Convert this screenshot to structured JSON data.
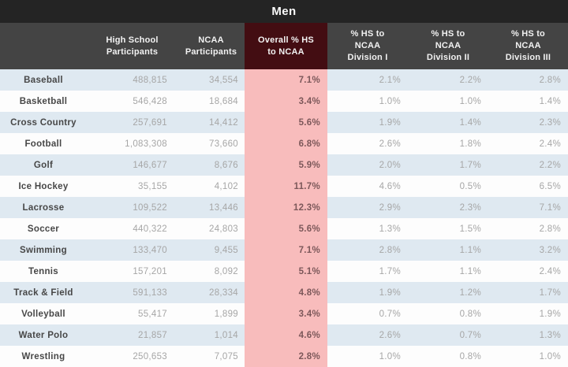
{
  "title": "Men",
  "colors": {
    "title_bar_bg": "#242424",
    "header_bg": "#444444",
    "header_text": "#f2f2f2",
    "overall_header_bg": "#430d12",
    "overall_column_bg": "#f8bcbc",
    "overall_value_text": "#7c585a",
    "stripe_row_bg": "#dfe9f1",
    "plain_row_bg": "#fdfdfd",
    "sport_text": "#474747",
    "value_text": "#a6a6a6"
  },
  "columns": {
    "sport": "",
    "hs": "High School\nParticipants",
    "ncaa": "NCAA\nParticipants",
    "overall": "Overall % HS\nto NCAA",
    "d1": "% HS to\nNCAA\nDivision I",
    "d2": "% HS to\nNCAA\nDivision II",
    "d3": "% HS to\nNCAA\nDivision III"
  },
  "rows": [
    {
      "sport": "Baseball",
      "hs": "488,815",
      "ncaa": "34,554",
      "overall": "7.1%",
      "d1": "2.1%",
      "d2": "2.2%",
      "d3": "2.8%"
    },
    {
      "sport": "Basketball",
      "hs": "546,428",
      "ncaa": "18,684",
      "overall": "3.4%",
      "d1": "1.0%",
      "d2": "1.0%",
      "d3": "1.4%"
    },
    {
      "sport": "Cross Country",
      "hs": "257,691",
      "ncaa": "14,412",
      "overall": "5.6%",
      "d1": "1.9%",
      "d2": "1.4%",
      "d3": "2.3%"
    },
    {
      "sport": "Football",
      "hs": "1,083,308",
      "ncaa": "73,660",
      "overall": "6.8%",
      "d1": "2.6%",
      "d2": "1.8%",
      "d3": "2.4%"
    },
    {
      "sport": "Golf",
      "hs": "146,677",
      "ncaa": "8,676",
      "overall": "5.9%",
      "d1": "2.0%",
      "d2": "1.7%",
      "d3": "2.2%"
    },
    {
      "sport": "Ice Hockey",
      "hs": "35,155",
      "ncaa": "4,102",
      "overall": "11.7%",
      "d1": "4.6%",
      "d2": "0.5%",
      "d3": "6.5%"
    },
    {
      "sport": "Lacrosse",
      "hs": "109,522",
      "ncaa": "13,446",
      "overall": "12.3%",
      "d1": "2.9%",
      "d2": "2.3%",
      "d3": "7.1%"
    },
    {
      "sport": "Soccer",
      "hs": "440,322",
      "ncaa": "24,803",
      "overall": "5.6%",
      "d1": "1.3%",
      "d2": "1.5%",
      "d3": "2.8%"
    },
    {
      "sport": "Swimming",
      "hs": "133,470",
      "ncaa": "9,455",
      "overall": "7.1%",
      "d1": "2.8%",
      "d2": "1.1%",
      "d3": "3.2%"
    },
    {
      "sport": "Tennis",
      "hs": "157,201",
      "ncaa": "8,092",
      "overall": "5.1%",
      "d1": "1.7%",
      "d2": "1.1%",
      "d3": "2.4%"
    },
    {
      "sport": "Track & Field",
      "hs": "591,133",
      "ncaa": "28,334",
      "overall": "4.8%",
      "d1": "1.9%",
      "d2": "1.2%",
      "d3": "1.7%"
    },
    {
      "sport": "Volleyball",
      "hs": "55,417",
      "ncaa": "1,899",
      "overall": "3.4%",
      "d1": "0.7%",
      "d2": "0.8%",
      "d3": "1.9%"
    },
    {
      "sport": "Water Polo",
      "hs": "21,857",
      "ncaa": "1,014",
      "overall": "4.6%",
      "d1": "2.6%",
      "d2": "0.7%",
      "d3": "1.3%"
    },
    {
      "sport": "Wrestling",
      "hs": "250,653",
      "ncaa": "7,075",
      "overall": "2.8%",
      "d1": "1.0%",
      "d2": "0.8%",
      "d3": "1.0%"
    }
  ],
  "chart_data": {
    "type": "table",
    "title": "Men",
    "columns": [
      "",
      "High School Participants",
      "NCAA Participants",
      "Overall % HS to NCAA",
      "% HS to NCAA Division I",
      "% HS to NCAA Division II",
      "% HS to NCAA Division III"
    ],
    "rows": [
      [
        "Baseball",
        488815,
        34554,
        7.1,
        2.1,
        2.2,
        2.8
      ],
      [
        "Basketball",
        546428,
        18684,
        3.4,
        1.0,
        1.0,
        1.4
      ],
      [
        "Cross Country",
        257691,
        14412,
        5.6,
        1.9,
        1.4,
        2.3
      ],
      [
        "Football",
        1083308,
        73660,
        6.8,
        2.6,
        1.8,
        2.4
      ],
      [
        "Golf",
        146677,
        8676,
        5.9,
        2.0,
        1.7,
        2.2
      ],
      [
        "Ice Hockey",
        35155,
        4102,
        11.7,
        4.6,
        0.5,
        6.5
      ],
      [
        "Lacrosse",
        109522,
        13446,
        12.3,
        2.9,
        2.3,
        7.1
      ],
      [
        "Soccer",
        440322,
        24803,
        5.6,
        1.3,
        1.5,
        2.8
      ],
      [
        "Swimming",
        133470,
        9455,
        7.1,
        2.8,
        1.1,
        3.2
      ],
      [
        "Tennis",
        157201,
        8092,
        5.1,
        1.7,
        1.1,
        2.4
      ],
      [
        "Track & Field",
        591133,
        28334,
        4.8,
        1.9,
        1.2,
        1.7
      ],
      [
        "Volleyball",
        55417,
        1899,
        3.4,
        0.7,
        0.8,
        1.9
      ],
      [
        "Water Polo",
        21857,
        1014,
        4.6,
        2.6,
        0.7,
        1.3
      ],
      [
        "Wrestling",
        250653,
        7075,
        2.8,
        1.0,
        0.8,
        1.0
      ]
    ],
    "highlighted_column": "Overall % HS to NCAA",
    "percent_columns_unit": "%"
  }
}
